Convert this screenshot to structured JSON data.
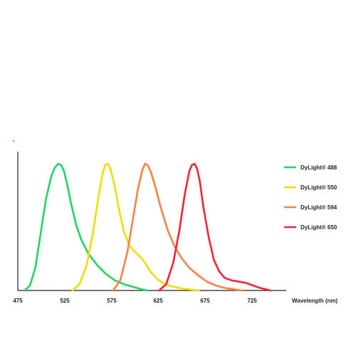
{
  "chart_data": {
    "type": "line",
    "title": "",
    "xlabel": "Wavelength (nm)",
    "ylabel": "",
    "xlim": [
      475,
      760
    ],
    "ylim": [
      0,
      1.0
    ],
    "xticks": [
      "475",
      "525",
      "575",
      "625",
      "675",
      "725"
    ],
    "xtick_values": [
      475,
      525,
      575,
      625,
      675,
      725
    ],
    "grid": false,
    "legend_position": "right",
    "series": [
      {
        "name": "DyLight® 488",
        "color": "#1ed760",
        "x": [
          478,
          484,
          490,
          496,
          502,
          508,
          512,
          516,
          519,
          522,
          526,
          530,
          536,
          542,
          550,
          560,
          570,
          580,
          590,
          600,
          610,
          616
        ],
        "y": [
          0.0,
          0.04,
          0.18,
          0.45,
          0.72,
          0.9,
          0.97,
          1.0,
          0.99,
          0.95,
          0.84,
          0.7,
          0.52,
          0.4,
          0.29,
          0.2,
          0.13,
          0.08,
          0.05,
          0.03,
          0.01,
          0.0
        ]
      },
      {
        "name": "DyLight® 550",
        "color": "#f5dc00",
        "x": [
          532,
          540,
          548,
          555,
          561,
          566,
          569,
          572,
          575,
          579,
          584,
          590,
          596,
          602,
          608,
          614,
          620,
          628,
          636,
          646,
          656,
          668,
          675
        ],
        "y": [
          0.0,
          0.05,
          0.2,
          0.45,
          0.72,
          0.92,
          0.99,
          1.0,
          0.96,
          0.85,
          0.66,
          0.47,
          0.36,
          0.31,
          0.27,
          0.22,
          0.15,
          0.09,
          0.05,
          0.03,
          0.015,
          0.005,
          0.0
        ]
      },
      {
        "name": "DyLight® 594",
        "color": "#ff8040",
        "x": [
          578,
          586,
          594,
          600,
          606,
          611,
          614,
          617,
          621,
          626,
          632,
          640,
          648,
          656,
          664,
          674,
          684,
          694,
          704,
          714,
          724
        ],
        "y": [
          0.0,
          0.08,
          0.3,
          0.55,
          0.8,
          0.95,
          1.0,
          0.99,
          0.93,
          0.81,
          0.65,
          0.47,
          0.34,
          0.25,
          0.18,
          0.12,
          0.07,
          0.04,
          0.02,
          0.01,
          0.0
        ]
      },
      {
        "name": "DyLight® 650",
        "color": "#ff2035",
        "x": [
          630,
          638,
          646,
          653,
          659,
          664,
          667,
          670,
          673,
          676,
          680,
          686,
          692,
          698,
          704,
          712,
          720,
          728,
          736,
          744,
          750,
          756
        ],
        "y": [
          0.0,
          0.05,
          0.22,
          0.48,
          0.76,
          0.94,
          0.99,
          1.0,
          0.96,
          0.86,
          0.66,
          0.42,
          0.24,
          0.15,
          0.1,
          0.08,
          0.07,
          0.06,
          0.04,
          0.02,
          0.01,
          0.0
        ]
      }
    ]
  }
}
